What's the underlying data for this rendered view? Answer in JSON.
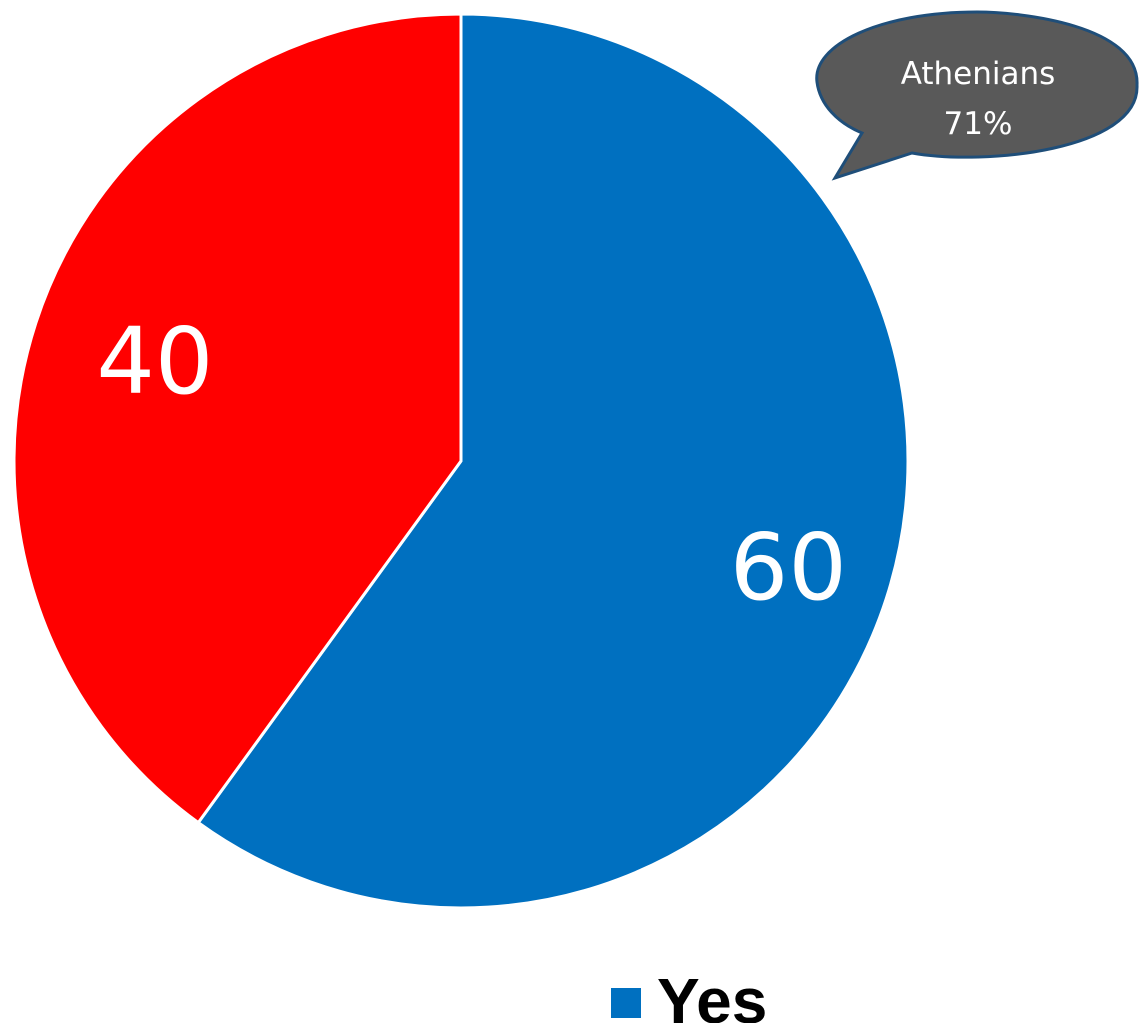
{
  "chart_data": {
    "type": "pie",
    "slices": [
      {
        "name": "Yes",
        "value": 60,
        "label": "60",
        "color": "#0070C0"
      },
      {
        "name": "",
        "value": 40,
        "label": "40",
        "color": "#FF0000"
      }
    ],
    "start_angle_deg": 0,
    "direction": "clockwise",
    "legend": {
      "placement": "bottom",
      "entries": [
        {
          "label": "Yes",
          "color": "#0070C0"
        }
      ]
    },
    "callout": {
      "line1": "Athenians",
      "line2": "71%",
      "fill": "#595959",
      "stroke": "#1F4E79"
    }
  }
}
